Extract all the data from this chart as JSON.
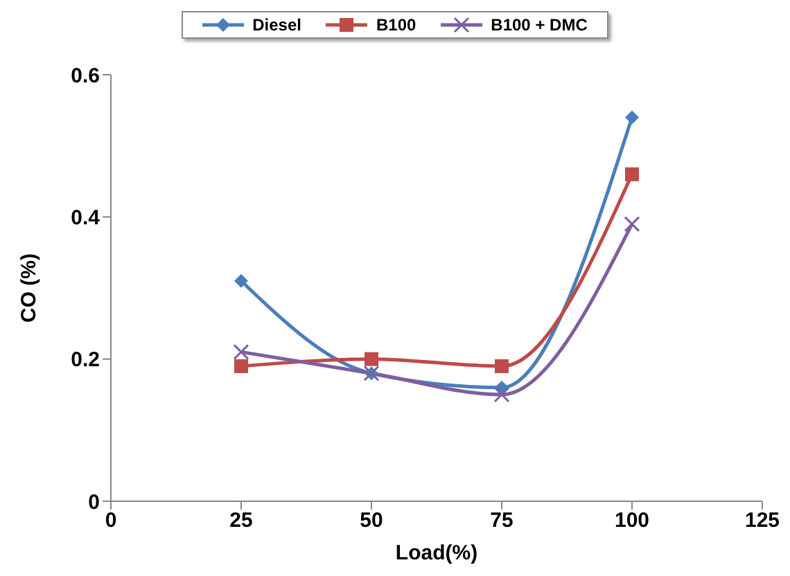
{
  "chart_data": {
    "type": "line",
    "xlabel": "Load(%)",
    "ylabel": "CO (%)",
    "x": [
      25,
      50,
      75,
      100
    ],
    "series": [
      {
        "name": "Diesel",
        "color": "#4a7ebb",
        "values": [
          0.31,
          0.18,
          0.16,
          0.54
        ],
        "marker": "diamond"
      },
      {
        "name": "B100",
        "color": "#be4b48",
        "values": [
          0.19,
          0.2,
          0.19,
          0.46
        ],
        "marker": "square"
      },
      {
        "name": "B100 + DMC",
        "color": "#7d5fa0",
        "values": [
          0.21,
          0.18,
          0.15,
          0.39
        ],
        "marker": "cross"
      }
    ],
    "xlim": [
      0,
      125
    ],
    "xticks": [
      0,
      25,
      50,
      75,
      100,
      125
    ],
    "ylim": [
      0,
      0.6
    ],
    "yticks": [
      0,
      0.2,
      0.4,
      0.6
    ],
    "grid": false,
    "legend": "top",
    "line_style": "solid"
  }
}
